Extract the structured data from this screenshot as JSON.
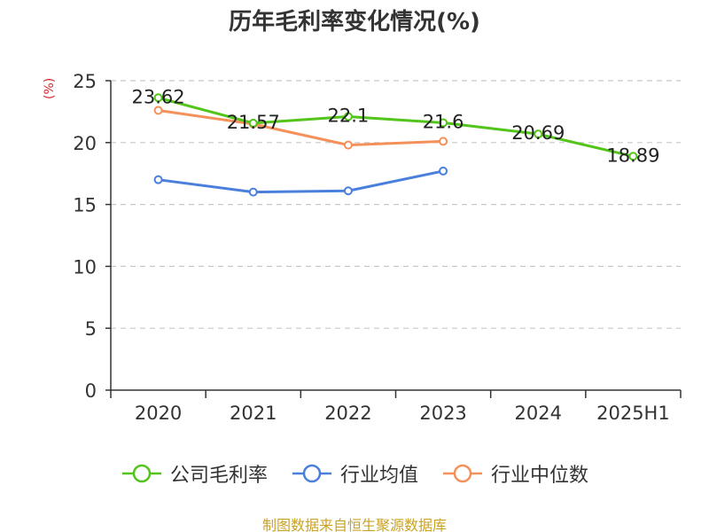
{
  "chart_data": {
    "type": "line",
    "title": "历年毛利率变化情况(%)",
    "ylabel": "(%)",
    "categories": [
      "2020",
      "2021",
      "2022",
      "2023",
      "2024",
      "2025H1"
    ],
    "ylim": [
      0,
      25
    ],
    "yticks": [
      0,
      5,
      10,
      15,
      20,
      25
    ],
    "grid": true,
    "legend_position": "bottom",
    "series": [
      {
        "name": "公司毛利率",
        "color": "#52c41a",
        "values": [
          23.62,
          21.57,
          22.1,
          21.6,
          20.69,
          18.89
        ],
        "labels": [
          "23.62",
          "21.57",
          "22.1",
          "21.6",
          "20.69",
          "18.89"
        ]
      },
      {
        "name": "行业均值",
        "color": "#4a7fdc",
        "values": [
          17.0,
          16.0,
          16.1,
          17.7,
          null,
          null
        ],
        "labels": null
      },
      {
        "name": "行业中位数",
        "color": "#f4915a",
        "values": [
          22.6,
          21.5,
          19.8,
          20.1,
          null,
          null
        ],
        "labels": null
      }
    ]
  },
  "footer": {
    "source": "制图数据来自恒生聚源数据库"
  }
}
